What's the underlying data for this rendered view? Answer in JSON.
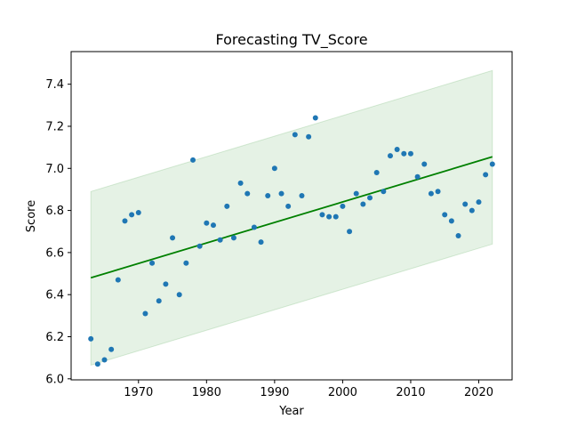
{
  "chart_data": {
    "type": "scatter",
    "title": "Forecasting TV_Score",
    "xlabel": "Year",
    "ylabel": "Score",
    "xlim": [
      1960.1,
      2024.9
    ],
    "ylim": [
      5.995,
      7.555
    ],
    "xticks": [
      1970,
      1980,
      1990,
      2000,
      2010,
      2020
    ],
    "yticks": [
      6.0,
      6.2,
      6.4,
      6.6,
      6.8,
      7.0,
      7.2,
      7.4
    ],
    "grid": false,
    "series": [
      {
        "kind": "scatter",
        "color": "#1f77b4",
        "points": [
          [
            1963,
            6.19
          ],
          [
            1964,
            6.07
          ],
          [
            1965,
            6.09
          ],
          [
            1966,
            6.14
          ],
          [
            1967,
            6.47
          ],
          [
            1968,
            6.75
          ],
          [
            1969,
            6.78
          ],
          [
            1970,
            6.79
          ],
          [
            1971,
            6.31
          ],
          [
            1972,
            6.55
          ],
          [
            1973,
            6.37
          ],
          [
            1974,
            6.45
          ],
          [
            1975,
            6.67
          ],
          [
            1976,
            6.4
          ],
          [
            1977,
            6.55
          ],
          [
            1978,
            7.04
          ],
          [
            1979,
            6.63
          ],
          [
            1980,
            6.74
          ],
          [
            1981,
            6.73
          ],
          [
            1982,
            6.66
          ],
          [
            1983,
            6.82
          ],
          [
            1984,
            6.67
          ],
          [
            1985,
            6.93
          ],
          [
            1986,
            6.88
          ],
          [
            1987,
            6.72
          ],
          [
            1988,
            6.65
          ],
          [
            1989,
            6.87
          ],
          [
            1990,
            7.0
          ],
          [
            1991,
            6.88
          ],
          [
            1992,
            6.82
          ],
          [
            1993,
            7.16
          ],
          [
            1994,
            6.87
          ],
          [
            1995,
            7.15
          ],
          [
            1996,
            7.24
          ],
          [
            1997,
            6.78
          ],
          [
            1998,
            6.77
          ],
          [
            1999,
            6.77
          ],
          [
            2000,
            6.82
          ],
          [
            2001,
            6.7
          ],
          [
            2002,
            6.88
          ],
          [
            2003,
            6.83
          ],
          [
            2004,
            6.86
          ],
          [
            2005,
            6.98
          ],
          [
            2006,
            6.89
          ],
          [
            2007,
            7.06
          ],
          [
            2008,
            7.09
          ],
          [
            2009,
            7.07
          ],
          [
            2010,
            7.07
          ],
          [
            2011,
            6.96
          ],
          [
            2012,
            7.02
          ],
          [
            2013,
            6.88
          ],
          [
            2014,
            6.89
          ],
          [
            2015,
            6.78
          ],
          [
            2016,
            6.75
          ],
          [
            2017,
            6.68
          ],
          [
            2018,
            6.83
          ],
          [
            2019,
            6.8
          ],
          [
            2020,
            6.84
          ],
          [
            2021,
            6.97
          ],
          [
            2022,
            7.02
          ]
        ]
      },
      {
        "kind": "line",
        "color": "#008000",
        "points": [
          [
            1963,
            6.48
          ],
          [
            2022,
            7.055
          ]
        ]
      },
      {
        "kind": "band",
        "color": "#008000",
        "opacity": 0.1,
        "x": [
          1963,
          2022
        ],
        "lower": [
          6.065,
          6.64
        ],
        "upper": [
          6.89,
          7.465
        ]
      }
    ]
  }
}
